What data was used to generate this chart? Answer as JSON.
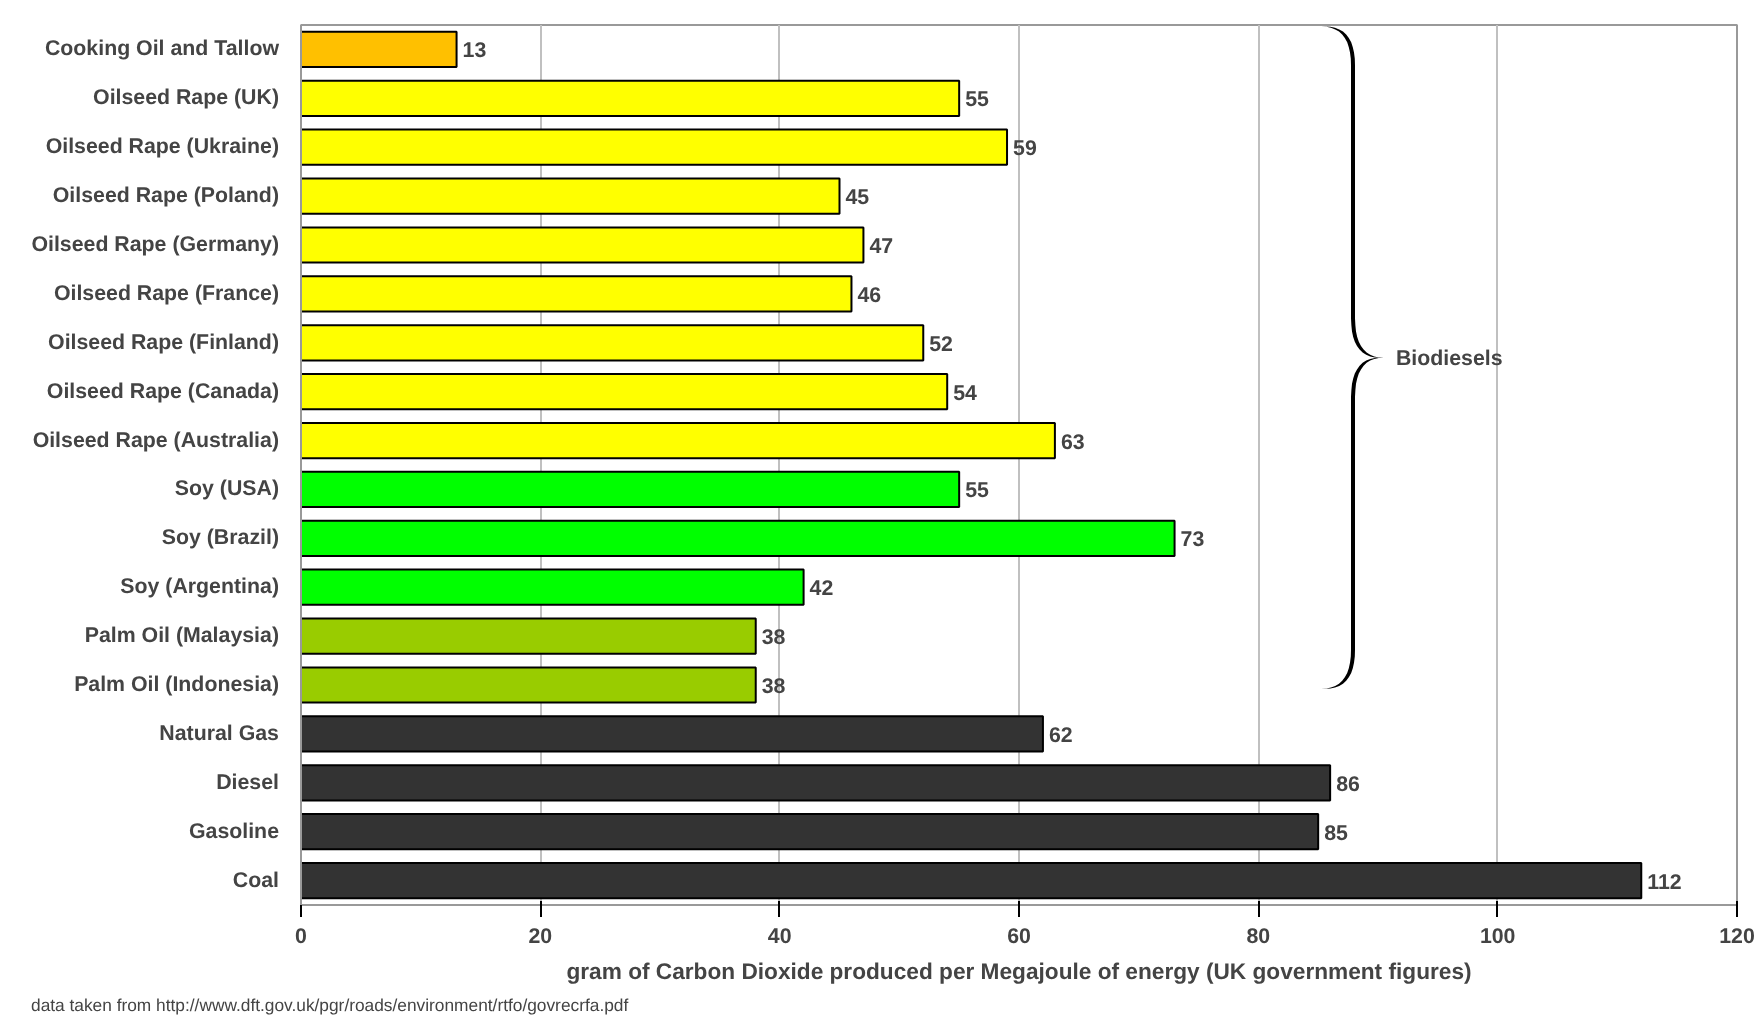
{
  "chart_data": {
    "type": "bar",
    "orientation": "horizontal",
    "categories": [
      "Cooking Oil and Tallow",
      "Oilseed Rape (UK)",
      "Oilseed Rape (Ukraine)",
      "Oilseed Rape (Poland)",
      "Oilseed Rape (Germany)",
      "Oilseed Rape (France)",
      "Oilseed Rape (Finland)",
      "Oilseed Rape (Canada)",
      "Oilseed Rape (Australia)",
      "Soy (USA)",
      "Soy (Brazil)",
      "Soy (Argentina)",
      "Palm Oil (Malaysia)",
      "Palm Oil (Indonesia)",
      "Natural Gas",
      "Diesel",
      "Gasoline",
      "Coal"
    ],
    "values": [
      13,
      55,
      59,
      45,
      47,
      46,
      52,
      54,
      63,
      55,
      73,
      42,
      38,
      38,
      62,
      86,
      85,
      112
    ],
    "colors": [
      "#ffc000",
      "#ffff00",
      "#ffff00",
      "#ffff00",
      "#ffff00",
      "#ffff00",
      "#ffff00",
      "#ffff00",
      "#ffff00",
      "#00ff00",
      "#00ff00",
      "#00ff00",
      "#99cc00",
      "#99cc00",
      "#333333",
      "#333333",
      "#333333",
      "#333333"
    ],
    "xlim": [
      0,
      120
    ],
    "xticks": [
      0,
      20,
      40,
      60,
      80,
      100,
      120
    ],
    "grid": "x",
    "data_labels": true,
    "xlabel": "gram of Carbon Dioxide produced per Megajoule of energy (UK government figures)",
    "annotations": [
      "Biodiesels",
      "data taken from http://www.dft.gov.uk/pgr/roads/environment/rtfo/govrecrfa.pdf"
    ]
  }
}
